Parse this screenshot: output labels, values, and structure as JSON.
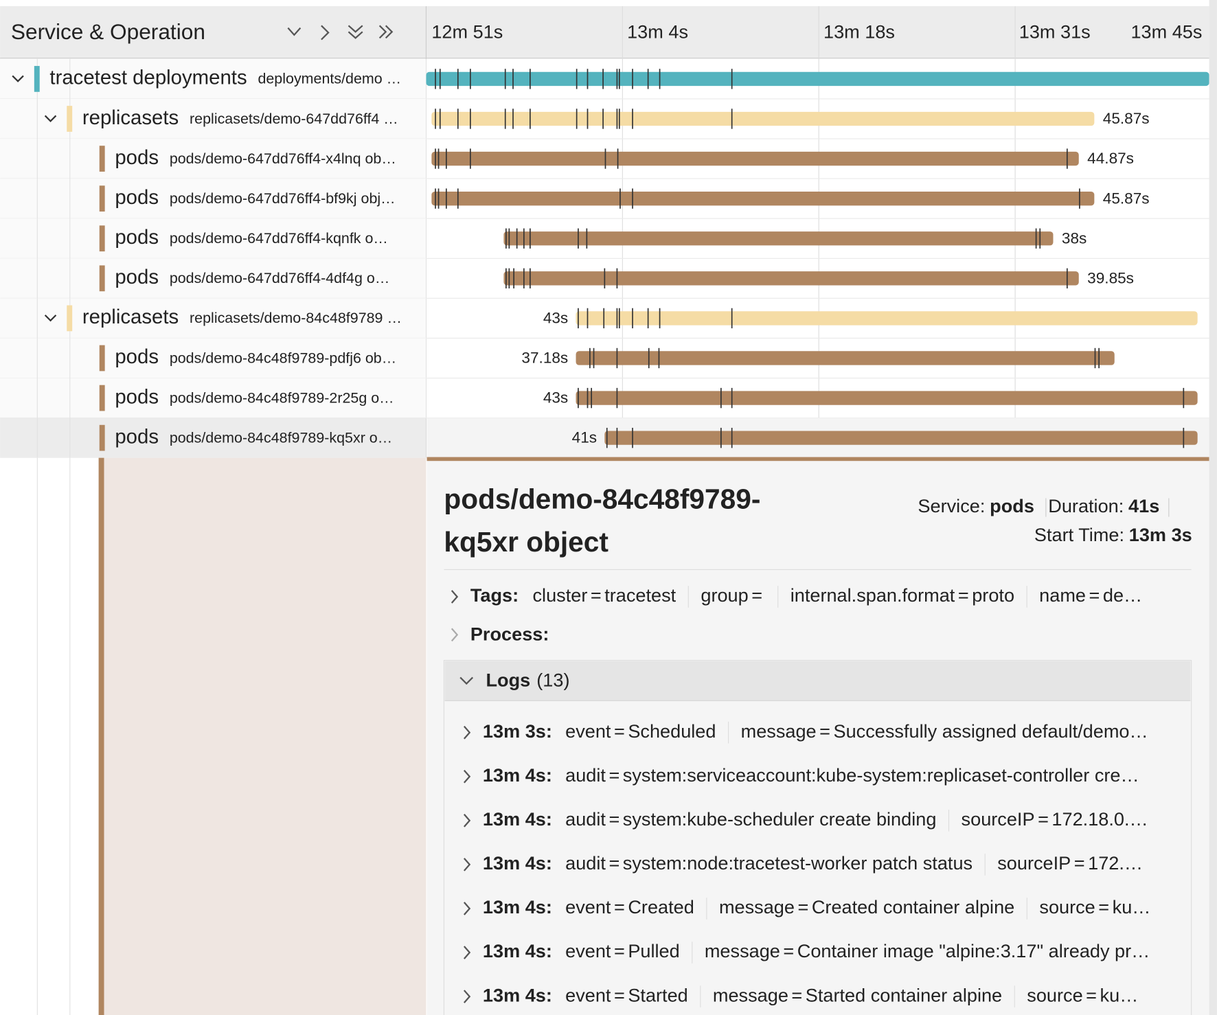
{
  "header": {
    "title": "Service & Operation"
  },
  "timeline": {
    "ticks": [
      "12m 51s",
      "13m 4s",
      "13m 18s",
      "13m 31s",
      "13m 45s"
    ]
  },
  "spans": [
    {
      "service": "tracetest deployments",
      "operation": "deployments/demo …"
    },
    {
      "service": "replicasets",
      "operation": "replicasets/demo-647dd76ff4 …",
      "duration": "45.87s"
    },
    {
      "service": "pods",
      "operation": "pods/demo-647dd76ff4-x4lnq ob…",
      "duration": "44.87s"
    },
    {
      "service": "pods",
      "operation": "pods/demo-647dd76ff4-bf9kj obj…",
      "duration": "45.87s"
    },
    {
      "service": "pods",
      "operation": "pods/demo-647dd76ff4-kqnfk o…",
      "duration": "38s"
    },
    {
      "service": "pods",
      "operation": "pods/demo-647dd76ff4-4df4g o…",
      "duration": "39.85s"
    },
    {
      "service": "replicasets",
      "operation": "replicasets/demo-84c48f9789 …",
      "duration": "43s"
    },
    {
      "service": "pods",
      "operation": "pods/demo-84c48f9789-pdfj6 ob…",
      "duration": "37.18s"
    },
    {
      "service": "pods",
      "operation": "pods/demo-84c48f9789-2r25g o…",
      "duration": "43s"
    },
    {
      "service": "pods",
      "operation": "pods/demo-84c48f9789-kq5xr o…",
      "duration": "41s"
    }
  ],
  "detail": {
    "title": [
      "pods/demo-84c48f9789-",
      "kq5xr object"
    ],
    "service_label": "Service:",
    "service": "pods",
    "duration_label": "Duration:",
    "duration": "41s",
    "start_label": "Start Time:",
    "start": "13m 3s",
    "separator": "=",
    "tags": {
      "label": "Tags:",
      "items": [
        {
          "key": "cluster",
          "value": "tracetest"
        },
        {
          "key": "group"
        },
        {
          "key": "internal.span.format",
          "value": "proto"
        },
        {
          "key": "name",
          "value": "de…"
        }
      ]
    },
    "process": {
      "label": "Process:"
    },
    "logs": {
      "label": "Logs",
      "count": "(13)",
      "entries": [
        {
          "time": "13m 3s:",
          "fields": [
            {
              "key": "event",
              "value": "Scheduled"
            },
            {
              "key": "message",
              "value": "Successfully assigned default/demo…"
            }
          ]
        },
        {
          "time": "13m 4s:",
          "fields": [
            {
              "key": "audit",
              "value": "system:serviceaccount:kube-system:replicaset-controller cre…"
            }
          ]
        },
        {
          "time": "13m 4s:",
          "fields": [
            {
              "key": "audit",
              "value": "system:kube-scheduler create binding"
            },
            {
              "key": "sourceIP",
              "value": "172.18.0.…"
            }
          ]
        },
        {
          "time": "13m 4s:",
          "fields": [
            {
              "key": "audit",
              "value": "system:node:tracetest-worker patch status"
            },
            {
              "key": "sourceIP",
              "value": "172.…"
            }
          ]
        },
        {
          "time": "13m 4s:",
          "fields": [
            {
              "key": "event",
              "value": "Created"
            },
            {
              "key": "message",
              "value": "Created container alpine"
            },
            {
              "key": "source",
              "value": "ku…"
            }
          ]
        },
        {
          "time": "13m 4s:",
          "fields": [
            {
              "key": "event",
              "value": "Pulled"
            },
            {
              "key": "message",
              "value": "Container image \"alpine:3.17\" already pr…"
            }
          ]
        },
        {
          "time": "13m 4s:",
          "fields": [
            {
              "key": "event",
              "value": "Started"
            },
            {
              "key": "message",
              "value": "Started container alpine"
            },
            {
              "key": "source",
              "value": "ku…"
            }
          ]
        }
      ]
    }
  }
}
